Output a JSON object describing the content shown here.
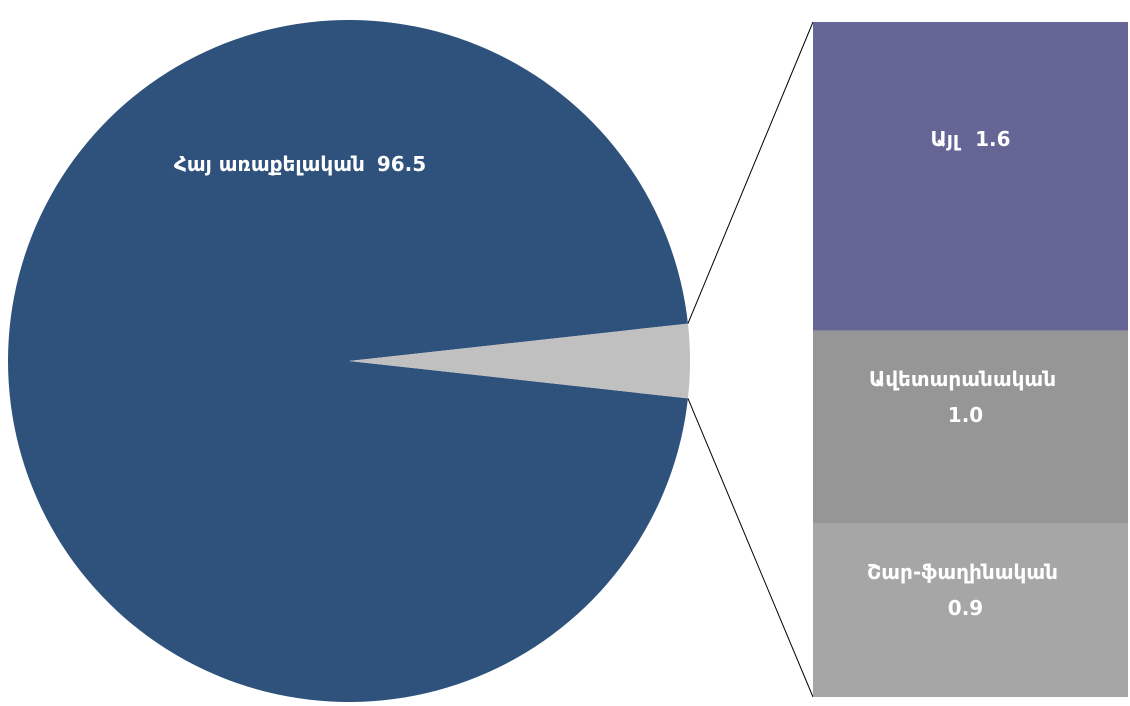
{
  "chart_data": {
    "type": "pie-of-bar",
    "pie": {
      "categories": [
        "Հայ առաքելական"
      ],
      "values": [
        96.5
      ],
      "colors": [
        "#2f527c"
      ],
      "other_color": "#c0c0c0"
    },
    "bar": {
      "categories": [
        "Այլ",
        "Ավետարանական",
        "Շար-ֆաղինական"
      ],
      "values": [
        1.6,
        1.0,
        0.9
      ],
      "value_labels": [
        "1.6",
        "1.0",
        "0.9"
      ],
      "colors": [
        "#656596",
        "#969696",
        "#a6a6a6"
      ]
    }
  }
}
